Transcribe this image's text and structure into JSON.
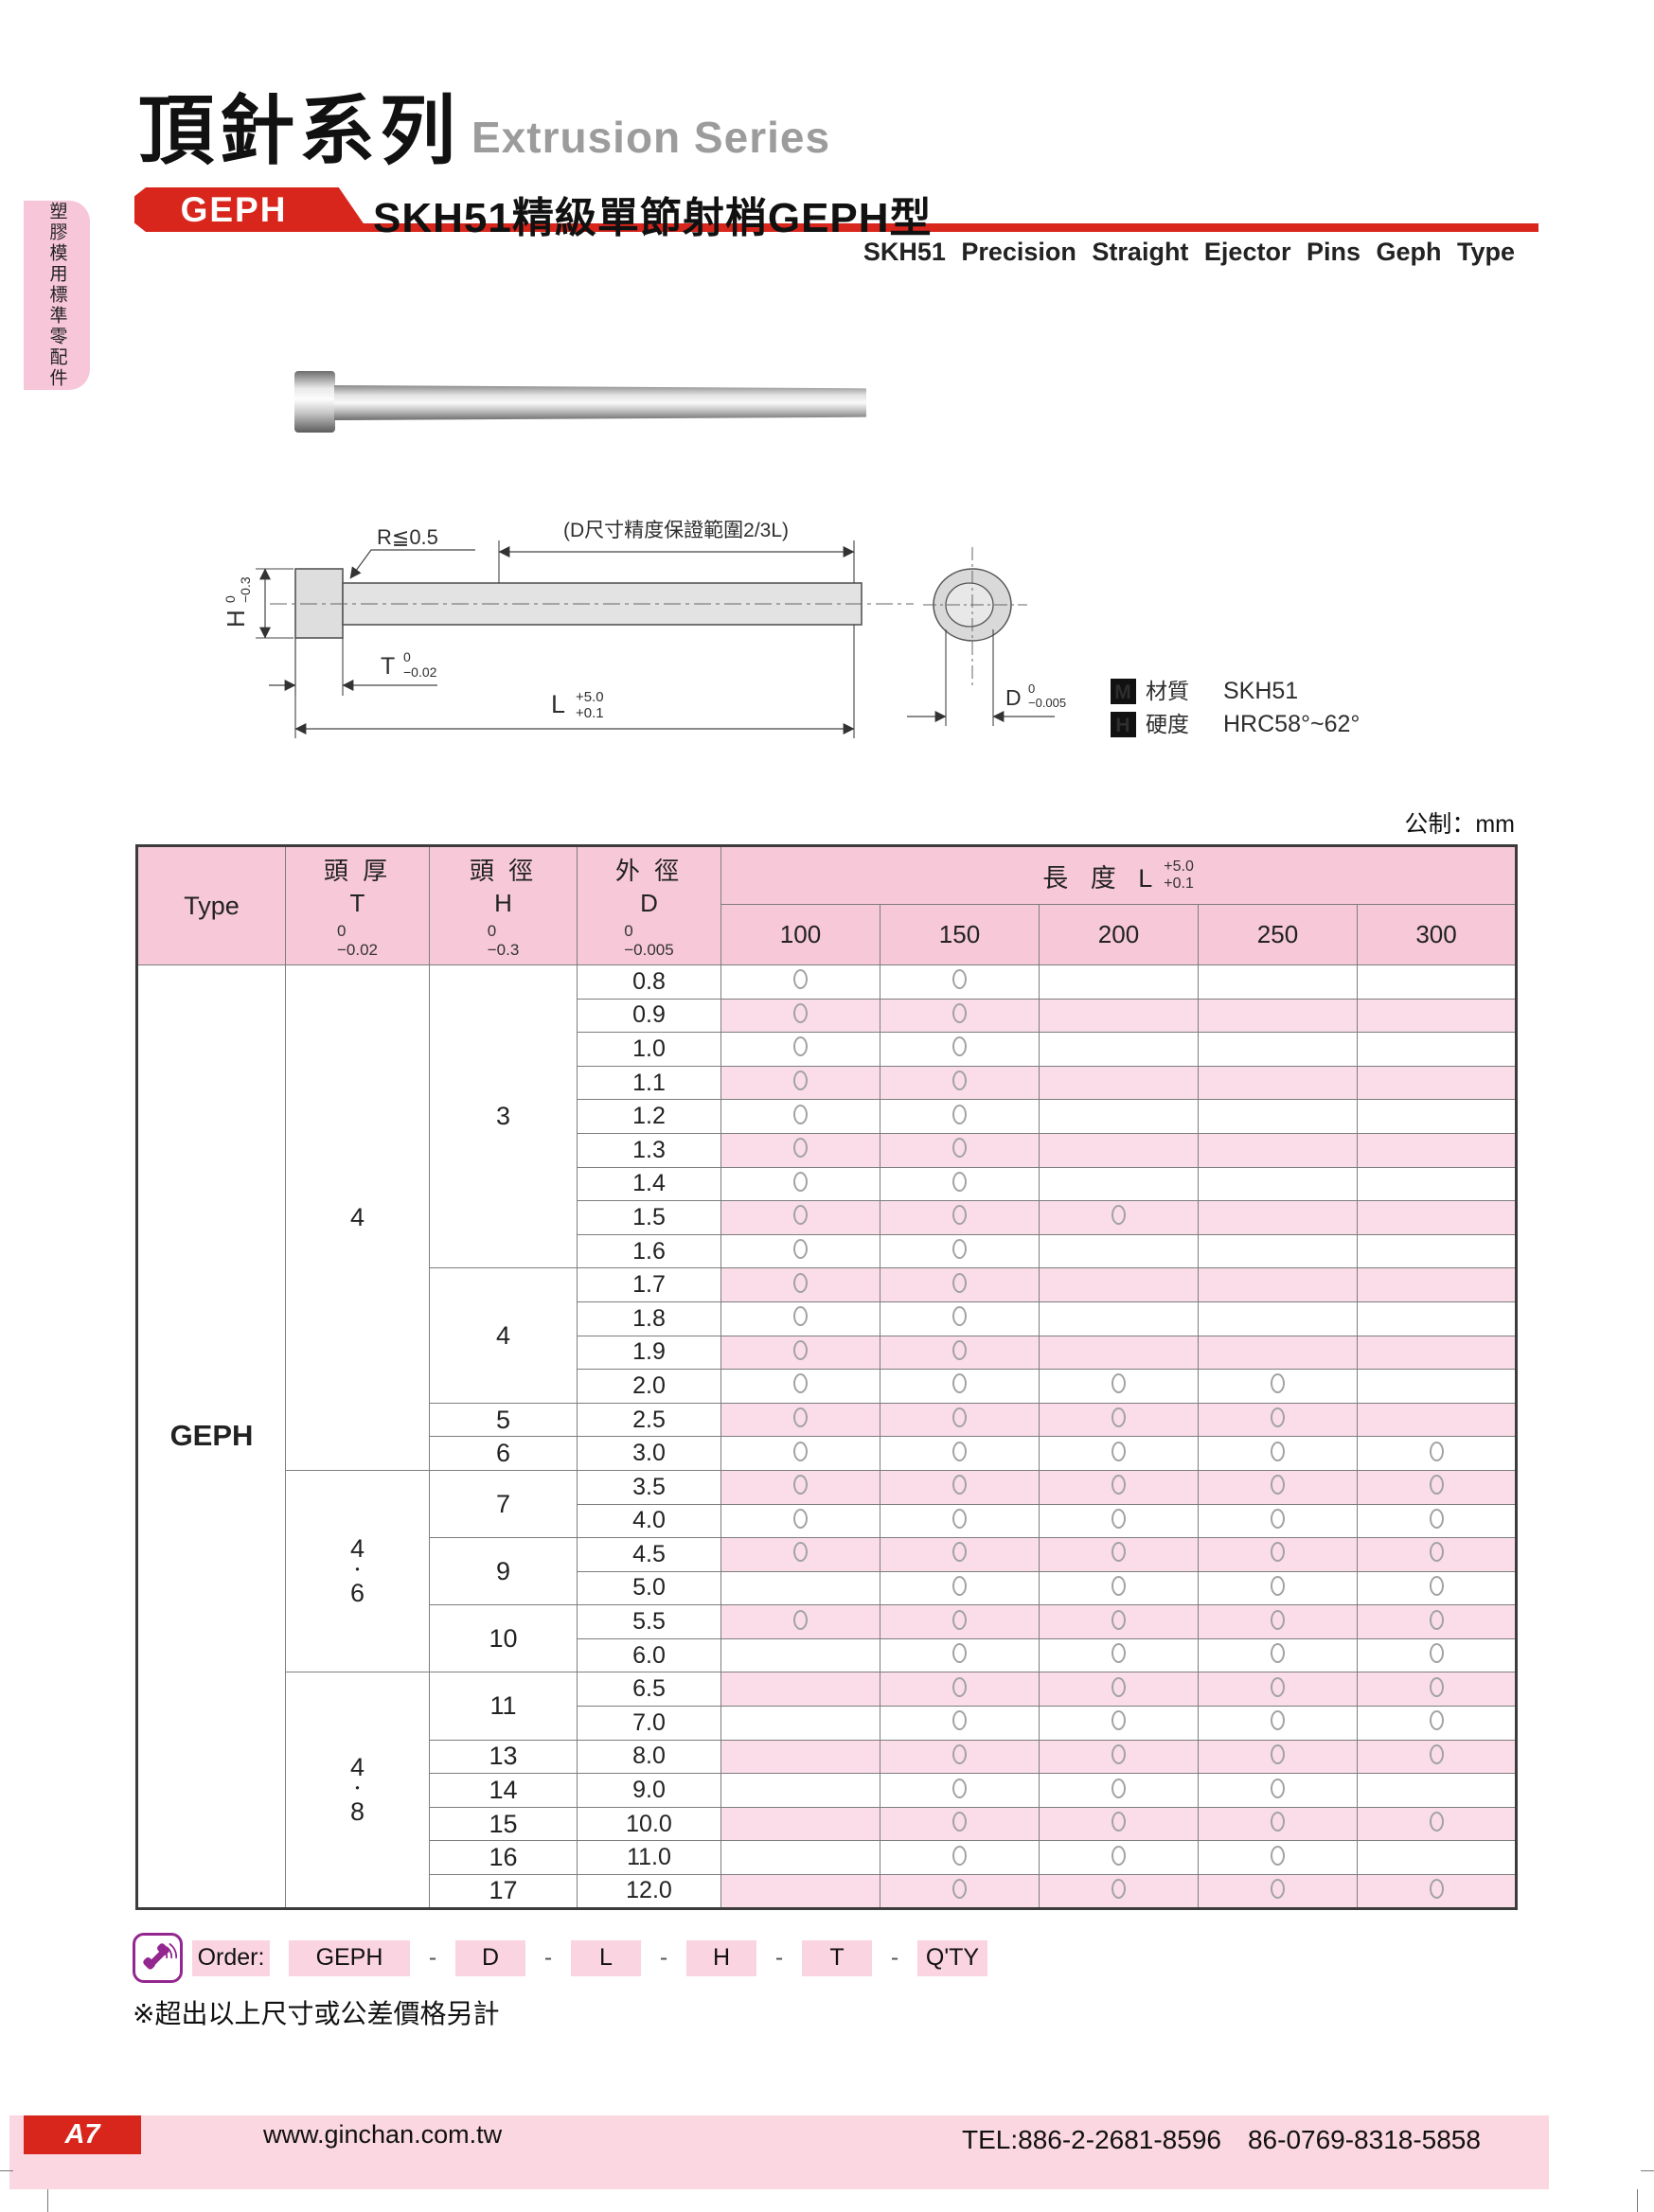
{
  "page": {
    "title_cjk": "頂針系列",
    "title_en": "Extrusion Series",
    "units_note": "公制：mm"
  },
  "sidebar_tab": {
    "text": "塑膠模用標準零配件"
  },
  "header": {
    "badge": "GEPH",
    "subtitle_cjk": "SKH51精級單節射梢GEPH型",
    "subtitle_en": "SKH51 Precision Straight Ejector Pins Geph Type"
  },
  "drawing": {
    "r_note": "R≦0.5",
    "d_range_note": "(D尺寸精度保證範圍2/3L)",
    "h_dim": {
      "sym": "H",
      "tol_top": "0",
      "tol_bottom": "−0.3"
    },
    "t_dim": {
      "sym": "T",
      "tol_top": "0",
      "tol_bottom": "−0.02"
    },
    "l_dim": {
      "sym": "L",
      "tol_top": "+5.0",
      "tol_bottom": "+0.1"
    },
    "d_dim": {
      "sym": "D",
      "tol_top": "0",
      "tol_bottom": "−0.005"
    },
    "material": {
      "badge": "M",
      "label": "材質",
      "value": "SKH51"
    },
    "hardness": {
      "badge": "H",
      "label": "硬度",
      "value": "HRC58°~62°"
    }
  },
  "table": {
    "type_header": "Type",
    "col_headers": [
      {
        "title": "頭 厚",
        "sym": "T",
        "tol_top": "0",
        "tol_bottom": "−0.02"
      },
      {
        "title": "頭 徑",
        "sym": "H",
        "tol_top": "0",
        "tol_bottom": "−0.3"
      },
      {
        "title": "外 徑",
        "sym": "D",
        "tol_top": "0",
        "tol_bottom": "−0.005"
      }
    ],
    "length_header": {
      "title": "長 度 L",
      "tol_top": "+5.0",
      "tol_bottom": "+0.1"
    },
    "length_columns": [
      "100",
      "150",
      "200",
      "250",
      "300"
    ],
    "type_label": "GEPH",
    "t_groups": [
      {
        "label": "4",
        "span": 15
      },
      {
        "label": "4・6",
        "span": 6
      },
      {
        "label": "4・8",
        "span": 7
      }
    ],
    "h_groups": [
      {
        "label": "3",
        "span": 9
      },
      {
        "label": "4",
        "span": 4
      },
      {
        "label": "5",
        "span": 1
      },
      {
        "label": "6",
        "span": 1
      },
      {
        "label": "7",
        "span": 2
      },
      {
        "label": "9",
        "span": 2
      },
      {
        "label": "10",
        "span": 2
      },
      {
        "label": "11",
        "span": 2
      },
      {
        "label": "13",
        "span": 1
      },
      {
        "label": "14",
        "span": 1
      },
      {
        "label": "15",
        "span": 1
      },
      {
        "label": "16",
        "span": 1
      },
      {
        "label": "17",
        "span": 1
      }
    ],
    "rows": [
      {
        "d": "0.8",
        "available": [
          1,
          1,
          0,
          0,
          0
        ]
      },
      {
        "d": "0.9",
        "available": [
          1,
          1,
          0,
          0,
          0
        ]
      },
      {
        "d": "1.0",
        "available": [
          1,
          1,
          0,
          0,
          0
        ]
      },
      {
        "d": "1.1",
        "available": [
          1,
          1,
          0,
          0,
          0
        ]
      },
      {
        "d": "1.2",
        "available": [
          1,
          1,
          0,
          0,
          0
        ]
      },
      {
        "d": "1.3",
        "available": [
          1,
          1,
          0,
          0,
          0
        ]
      },
      {
        "d": "1.4",
        "available": [
          1,
          1,
          0,
          0,
          0
        ]
      },
      {
        "d": "1.5",
        "available": [
          1,
          1,
          1,
          0,
          0
        ]
      },
      {
        "d": "1.6",
        "available": [
          1,
          1,
          0,
          0,
          0
        ]
      },
      {
        "d": "1.7",
        "available": [
          1,
          1,
          0,
          0,
          0
        ]
      },
      {
        "d": "1.8",
        "available": [
          1,
          1,
          0,
          0,
          0
        ]
      },
      {
        "d": "1.9",
        "available": [
          1,
          1,
          0,
          0,
          0
        ]
      },
      {
        "d": "2.0",
        "available": [
          1,
          1,
          1,
          1,
          0
        ]
      },
      {
        "d": "2.5",
        "available": [
          1,
          1,
          1,
          1,
          0
        ]
      },
      {
        "d": "3.0",
        "available": [
          1,
          1,
          1,
          1,
          1
        ]
      },
      {
        "d": "3.5",
        "available": [
          1,
          1,
          1,
          1,
          1
        ]
      },
      {
        "d": "4.0",
        "available": [
          1,
          1,
          1,
          1,
          1
        ]
      },
      {
        "d": "4.5",
        "available": [
          1,
          1,
          1,
          1,
          1
        ]
      },
      {
        "d": "5.0",
        "available": [
          0,
          1,
          1,
          1,
          1
        ]
      },
      {
        "d": "5.5",
        "available": [
          1,
          1,
          1,
          1,
          1
        ]
      },
      {
        "d": "6.0",
        "available": [
          0,
          1,
          1,
          1,
          1
        ]
      },
      {
        "d": "6.5",
        "available": [
          0,
          1,
          1,
          1,
          1
        ]
      },
      {
        "d": "7.0",
        "available": [
          0,
          1,
          1,
          1,
          1
        ]
      },
      {
        "d": "8.0",
        "available": [
          0,
          1,
          1,
          1,
          1
        ]
      },
      {
        "d": "9.0",
        "available": [
          0,
          1,
          1,
          1,
          0
        ]
      },
      {
        "d": "10.0",
        "available": [
          0,
          1,
          1,
          1,
          1
        ]
      },
      {
        "d": "11.0",
        "available": [
          0,
          1,
          1,
          1,
          0
        ]
      },
      {
        "d": "12.0",
        "available": [
          0,
          1,
          1,
          1,
          1
        ]
      }
    ]
  },
  "order": {
    "label": "Order:",
    "separator": "-",
    "parts": [
      "GEPH",
      "D",
      "L",
      "H",
      "T",
      "Q'TY"
    ]
  },
  "note": "※超出以上尺寸或公差價格另計",
  "footer": {
    "page_code": "A7",
    "website": "www.ginchan.com.tw",
    "tel": "TEL:886-2-2681-8596　86-0769-8318-5858"
  },
  "colors": {
    "accent_red": "#d8261d",
    "header_pink": "#f7c8d8",
    "row_pink": "#fadde8",
    "tab_pink": "#f7c6d8",
    "footer_pink": "#fbd7e2",
    "order_pink": "#fad4e0",
    "purple": "#93278f"
  }
}
